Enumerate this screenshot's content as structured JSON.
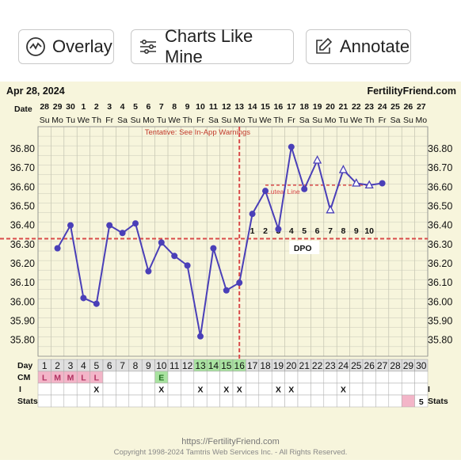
{
  "toolbar": {
    "overlay_label": "Overlay",
    "charts_like_mine_label": "Charts Like Mine",
    "annotate_label": "Annotate"
  },
  "chart_data": {
    "type": "line",
    "header_date": "Apr 28, 2024",
    "brand": "FertilityFriend.com",
    "date_label": "Date",
    "dates": [
      "28",
      "29",
      "30",
      "1",
      "2",
      "3",
      "4",
      "5",
      "6",
      "7",
      "8",
      "9",
      "10",
      "11",
      "12",
      "13",
      "14",
      "15",
      "16",
      "17",
      "18",
      "19",
      "20",
      "21",
      "22",
      "23",
      "24",
      "25",
      "26",
      "27"
    ],
    "weekdays": [
      "Su",
      "Mo",
      "Tu",
      "We",
      "Th",
      "Fr",
      "Sa",
      "Su",
      "Mo",
      "Tu",
      "We",
      "Th",
      "Fr",
      "Sa",
      "Su",
      "Mo",
      "Tu",
      "We",
      "Th",
      "Fr",
      "Sa",
      "Su",
      "Mo",
      "Tu",
      "We",
      "Th",
      "Fr",
      "Sa",
      "Su",
      "Mo"
    ],
    "tentative_note": "Tentative: See In-App Warnings",
    "y_ticks": [
      "36.80",
      "36.70",
      "36.60",
      "36.50",
      "36.40",
      "36.30",
      "36.20",
      "36.10",
      "36.00",
      "35.90",
      "35.80"
    ],
    "ylim": [
      35.75,
      36.85
    ],
    "temps": [
      36.28,
      36.4,
      36.02,
      35.99,
      36.4,
      36.36,
      36.41,
      36.16,
      36.31,
      36.24,
      36.19,
      35.82,
      36.28,
      36.06,
      36.1,
      36.46,
      36.58,
      36.38,
      36.81,
      36.59,
      36.74,
      36.48,
      36.69,
      36.62,
      36.61,
      36.62
    ],
    "open_markers": [
      21,
      22,
      23,
      24,
      25
    ],
    "coverline": 36.33,
    "coverline_label": "Luteal Line",
    "luteal_level": 36.61,
    "ovulation_day": 16,
    "dpo_numbers": [
      "1",
      "2",
      "3",
      "4",
      "5",
      "6",
      "7",
      "8",
      "9",
      "10"
    ],
    "dpo_label": "DPO",
    "day_label": "Day",
    "days": [
      "1",
      "2",
      "3",
      "4",
      "5",
      "6",
      "7",
      "8",
      "9",
      "10",
      "11",
      "12",
      "13",
      "14",
      "15",
      "16",
      "17",
      "18",
      "19",
      "20",
      "21",
      "22",
      "23",
      "24",
      "25",
      "26",
      "27",
      "28",
      "29",
      "30"
    ],
    "fertile_days": [
      13,
      14,
      15,
      16
    ],
    "cm_label": "CM",
    "cm": {
      "1": "L",
      "2": "M",
      "3": "M",
      "4": "L",
      "5": "L",
      "10": "E"
    },
    "i_label": "I",
    "intercourse_days": [
      5,
      10,
      13,
      15,
      16,
      19,
      20,
      24
    ],
    "intercourse_mark": "X",
    "stats_label": "Stats",
    "stats_value": "5",
    "stats_day": 29,
    "footer_url": "https://FertilityFriend.com",
    "copyright": "Copyright 1998-2024 Tamtris Web Services Inc. - All Rights Reserved."
  },
  "colors": {
    "background": "#f7f5dc",
    "line": "#4a3fb8",
    "coverline": "#d94a4a",
    "fertile_green": "#a9e3a0",
    "cm_pink": "#f3b5c8",
    "day_gray": "#e0e0e0"
  }
}
